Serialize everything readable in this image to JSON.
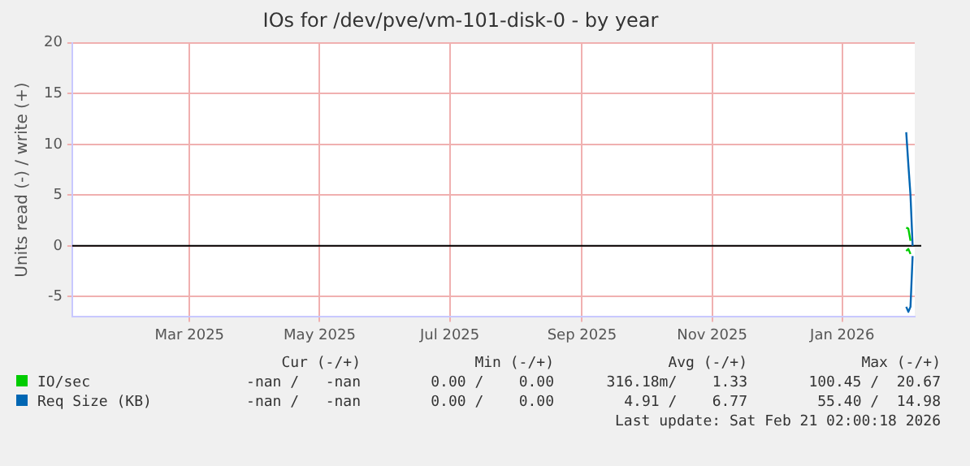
{
  "chart_data": {
    "type": "line",
    "title": "IOs for /dev/pve/vm-101-disk-0 - by year",
    "ylabel": "Units read (-) / write (+)",
    "xlim": [
      "2025-01-19",
      "2026-02-18"
    ],
    "xticks": [
      {
        "value": "2025-03-15",
        "label": "Mar 2025"
      },
      {
        "value": "2025-05-15",
        "label": "May 2025"
      },
      {
        "value": "2025-07-15",
        "label": "Jul 2025"
      },
      {
        "value": "2025-09-15",
        "label": "Sep 2025"
      },
      {
        "value": "2025-11-15",
        "label": "Nov 2025"
      },
      {
        "value": "2026-01-15",
        "label": "Jan 2026"
      }
    ],
    "ylim": [
      -7,
      20
    ],
    "yticks": [
      -5,
      0,
      5,
      10,
      15,
      20
    ],
    "grid": true,
    "legend": "bottom",
    "marker": "none",
    "ref_lines": [
      {
        "axis": "y",
        "value": 0,
        "color": "#000000"
      }
    ],
    "series": [
      {
        "name": "IO/sec",
        "color": "#00cc00",
        "x": [
          "2026-02-14",
          "2026-02-15",
          "2026-02-16"
        ],
        "values": [
          1.8,
          1.7,
          0.5
        ]
      },
      {
        "color": "#00cc00",
        "x": [
          "2026-02-14",
          "2026-02-15",
          "2026-02-16"
        ],
        "values": [
          -0.5,
          -0.3,
          -0.8
        ]
      },
      {
        "name": "Req Size (KB)",
        "color": "#0066b3",
        "x": [
          "2026-02-14",
          "2026-02-15",
          "2026-02-16",
          "2026-02-17"
        ],
        "values": [
          11.2,
          8,
          5,
          0
        ]
      },
      {
        "color": "#0066b3",
        "x": [
          "2026-02-14",
          "2026-02-15",
          "2026-02-16",
          "2026-02-17"
        ],
        "values": [
          -6,
          -6.5,
          -6,
          -1
        ]
      }
    ],
    "annotations": [
      "Cur (-/+)",
      "Min (-/+)",
      "Avg (-/+)",
      "Max (-/+)",
      "-nan /   -nan",
      "0.00 /    0.00",
      "316.18m/    1.33",
      "100.45 /  20.67",
      "-nan /   -nan",
      "0.00 /    0.00",
      "4.91 /    6.77",
      "55.40 /  14.98",
      "Last update: Sat Feb 21 02:00:18 2026"
    ]
  }
}
